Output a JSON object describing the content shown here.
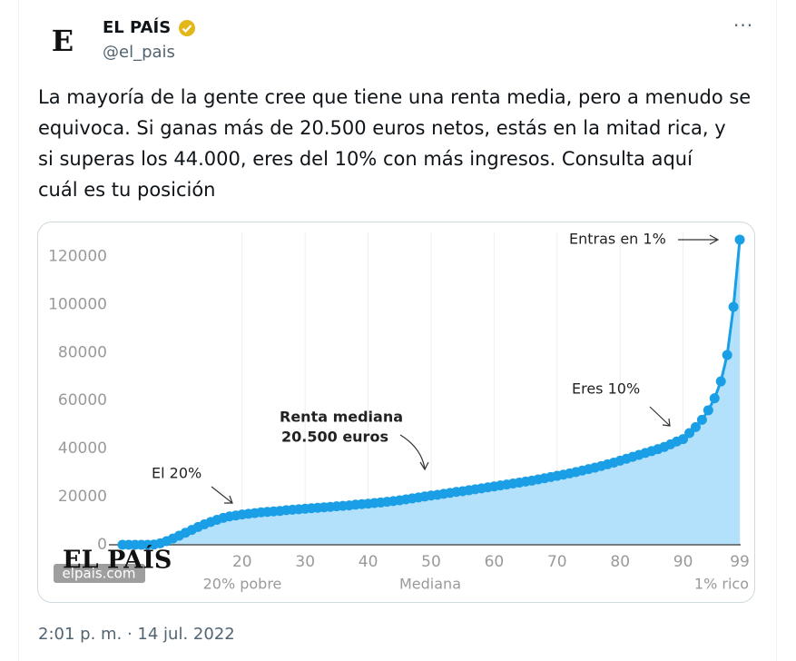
{
  "tweet": {
    "name": "EL PAÍS",
    "handle": "@el_pais",
    "avatar": "E",
    "text": [
      "La mayoría de la gente cree que tiene una renta media, pero a menudo se",
      "equivoca. Si ganas más de 20.500 euros netos, estás en la mitad rica, y",
      "si superas los 44.000, eres del 10% con más ingresos. Consulta aquí",
      "cuál es tu posición"
    ],
    "timestamp": "2:01 p. m. · 14 jul. 2022"
  },
  "chart_data": {
    "type": "line",
    "color": "#1a9fe6",
    "fill": "#b3e1fb",
    "grid": true,
    "x": [
      1,
      2,
      3,
      4,
      5,
      6,
      7,
      8,
      9,
      10,
      11,
      12,
      13,
      14,
      15,
      16,
      17,
      18,
      19,
      20,
      21,
      22,
      23,
      24,
      25,
      26,
      27,
      28,
      29,
      30,
      31,
      32,
      33,
      34,
      35,
      36,
      37,
      38,
      39,
      40,
      41,
      42,
      43,
      44,
      45,
      46,
      47,
      48,
      49,
      50,
      51,
      52,
      53,
      54,
      55,
      56,
      57,
      58,
      59,
      60,
      61,
      62,
      63,
      64,
      65,
      66,
      67,
      68,
      69,
      70,
      71,
      72,
      73,
      74,
      75,
      76,
      77,
      78,
      79,
      80,
      81,
      82,
      83,
      84,
      85,
      86,
      87,
      88,
      89,
      90,
      91,
      92,
      93,
      94,
      95,
      96,
      97,
      98,
      99
    ],
    "values": [
      0,
      0,
      0,
      0,
      0,
      100,
      600,
      1500,
      2600,
      3800,
      5000,
      6200,
      7400,
      8500,
      9500,
      10400,
      11200,
      11800,
      12200,
      12600,
      12900,
      13200,
      13500,
      13700,
      13900,
      14100,
      14400,
      14600,
      14800,
      15000,
      15200,
      15400,
      15600,
      15800,
      16000,
      16200,
      16400,
      16700,
      16900,
      17100,
      17400,
      17600,
      17900,
      18200,
      18500,
      18900,
      19300,
      19700,
      20100,
      20500,
      20800,
      21200,
      21600,
      22000,
      22300,
      22700,
      23100,
      23500,
      23900,
      24300,
      24700,
      25100,
      25500,
      25900,
      26300,
      26700,
      27200,
      27700,
      28200,
      28700,
      29200,
      29700,
      30300,
      30900,
      31500,
      32100,
      32800,
      33500,
      34200,
      35000,
      35800,
      36600,
      37400,
      38200,
      39000,
      39800,
      40700,
      41800,
      43000,
      44000,
      46500,
      49000,
      52000,
      56000,
      61000,
      68000,
      79000,
      99000,
      127000
    ],
    "xlim": [
      0,
      100
    ],
    "ylim": [
      0,
      130000
    ],
    "xticks": [
      20,
      30,
      40,
      50,
      60,
      70,
      80,
      90,
      99
    ],
    "yticks": [
      0,
      20000,
      40000,
      60000,
      80000,
      100000,
      120000
    ],
    "x_sublabels": [
      "20% pobre",
      "Mediana",
      "1% rico"
    ],
    "annotations": [
      "Entras en 1%",
      "Eres 10%",
      "Renta mediana",
      "20.500 euros",
      "El 20%"
    ],
    "logo": "EL PAÍS",
    "watermark": "elpais.com"
  }
}
